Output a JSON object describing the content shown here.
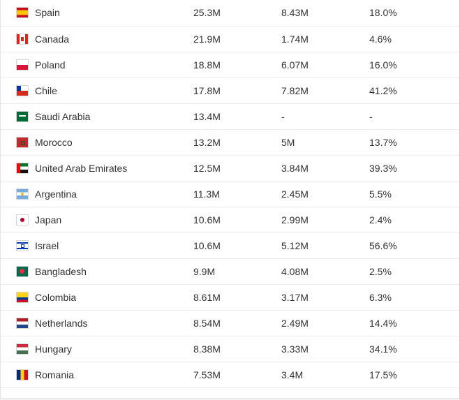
{
  "rows": [
    {
      "country": "Spain",
      "flag": "spain-flag-icon",
      "col2": "25.3M",
      "col3": "8.43M",
      "col4": "18.0%"
    },
    {
      "country": "Canada",
      "flag": "canada-flag-icon",
      "col2": "21.9M",
      "col3": "1.74M",
      "col4": "4.6%"
    },
    {
      "country": "Poland",
      "flag": "poland-flag-icon",
      "col2": "18.8M",
      "col3": "6.07M",
      "col4": "16.0%"
    },
    {
      "country": "Chile",
      "flag": "chile-flag-icon",
      "col2": "17.8M",
      "col3": "7.82M",
      "col4": "41.2%"
    },
    {
      "country": "Saudi Arabia",
      "flag": "saudi-arabia-flag-icon",
      "col2": "13.4M",
      "col3": "-",
      "col4": "-"
    },
    {
      "country": "Morocco",
      "flag": "morocco-flag-icon",
      "col2": "13.2M",
      "col3": "5M",
      "col4": "13.7%"
    },
    {
      "country": "United Arab Emirates",
      "flag": "uae-flag-icon",
      "col2": "12.5M",
      "col3": "3.84M",
      "col4": "39.3%"
    },
    {
      "country": "Argentina",
      "flag": "argentina-flag-icon",
      "col2": "11.3M",
      "col3": "2.45M",
      "col4": "5.5%"
    },
    {
      "country": "Japan",
      "flag": "japan-flag-icon",
      "col2": "10.6M",
      "col3": "2.99M",
      "col4": "2.4%"
    },
    {
      "country": "Israel",
      "flag": "israel-flag-icon",
      "col2": "10.6M",
      "col3": "5.12M",
      "col4": "56.6%"
    },
    {
      "country": "Bangladesh",
      "flag": "bangladesh-flag-icon",
      "col2": "9.9M",
      "col3": "4.08M",
      "col4": "2.5%"
    },
    {
      "country": "Colombia",
      "flag": "colombia-flag-icon",
      "col2": "8.61M",
      "col3": "3.17M",
      "col4": "6.3%"
    },
    {
      "country": "Netherlands",
      "flag": "netherlands-flag-icon",
      "col2": "8.54M",
      "col3": "2.49M",
      "col4": "14.4%"
    },
    {
      "country": "Hungary",
      "flag": "hungary-flag-icon",
      "col2": "8.38M",
      "col3": "3.33M",
      "col4": "34.1%"
    },
    {
      "country": "Romania",
      "flag": "romania-flag-icon",
      "col2": "7.53M",
      "col3": "3.4M",
      "col4": "17.5%"
    }
  ],
  "colors": {
    "text": "#333333",
    "row_border": "#ececec"
  }
}
